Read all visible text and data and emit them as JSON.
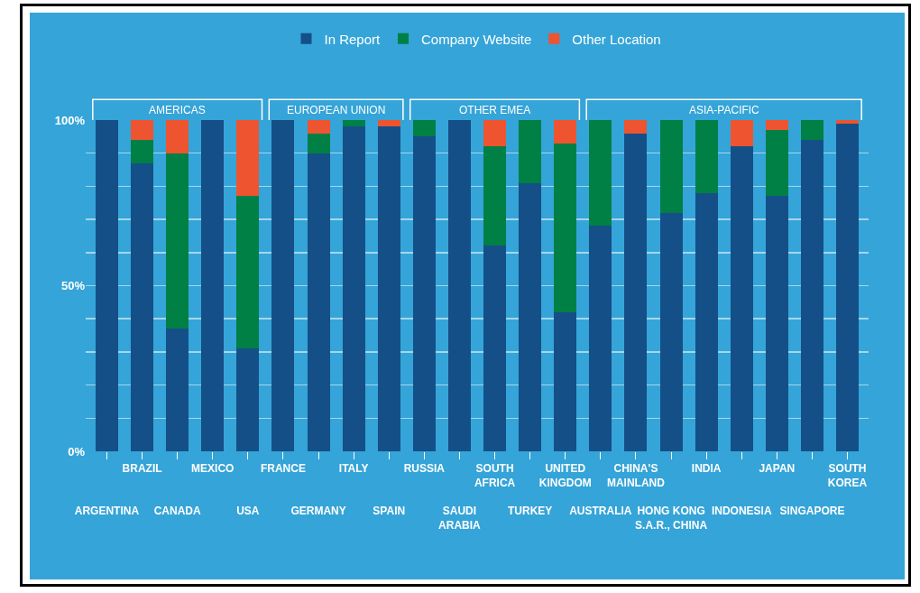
{
  "chart_data": {
    "type": "bar",
    "stacked": true,
    "categories": [
      "ARGENTINA",
      "BRAZIL",
      "CANADA",
      "MEXICO",
      "USA",
      "FRANCE",
      "GERMANY",
      "ITALY",
      "SPAIN",
      "RUSSIA",
      "SAUDI ARABIA",
      "SOUTH AFRICA",
      "TURKEY",
      "UNITED KINGDOM",
      "AUSTRALIA",
      "CHINA'S MAINLAND",
      "HONG KONG S.A.R., CHINA",
      "INDIA",
      "INDONESIA",
      "JAPAN",
      "SINGAPORE",
      "SOUTH KOREA"
    ],
    "series": [
      {
        "name": "In Report",
        "color": "#154f87",
        "values": [
          100,
          87,
          37,
          100,
          31,
          100,
          90,
          98,
          98,
          95,
          100,
          62,
          81,
          42,
          68,
          96,
          72,
          78,
          92,
          77,
          94,
          99
        ]
      },
      {
        "name": "Company Website",
        "color": "#008045",
        "values": [
          0,
          7,
          53,
          0,
          46,
          0,
          6,
          2,
          0,
          5,
          0,
          30,
          19,
          51,
          32,
          0,
          28,
          22,
          0,
          20,
          6,
          0
        ]
      },
      {
        "name": "Other Location",
        "color": "#ee5430",
        "values": [
          0,
          6,
          10,
          0,
          23,
          0,
          4,
          0,
          2,
          0,
          0,
          8,
          0,
          7,
          0,
          4,
          0,
          0,
          8,
          3,
          0,
          1
        ]
      }
    ],
    "ylim": [
      0,
      100
    ],
    "yticks": [
      {
        "value": 0,
        "label": "0%"
      },
      {
        "value": 10,
        "label": null
      },
      {
        "value": 20,
        "label": null
      },
      {
        "value": 30,
        "label": null
      },
      {
        "value": 40,
        "label": null
      },
      {
        "value": 50,
        "label": "50%"
      },
      {
        "value": 60,
        "label": null
      },
      {
        "value": 70,
        "label": null
      },
      {
        "value": 80,
        "label": null
      },
      {
        "value": 90,
        "label": null
      },
      {
        "value": 100,
        "label": "100%"
      }
    ],
    "grid": "y",
    "legend": "top",
    "annotations": [
      "AMERICAS",
      "EUROPEAN UNION",
      "OTHER EMEA",
      "ASIA-PACIFIC"
    ]
  }
}
